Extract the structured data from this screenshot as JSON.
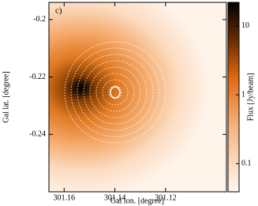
{
  "chart_data": {
    "type": "image",
    "title": "c)",
    "xlabel": "Gal lon. [degree]",
    "ylabel": "Gal lat. [degree]",
    "xlim": [
      301.166,
      301.096
    ],
    "xticks": [
      301.16,
      301.14,
      301.12
    ],
    "ylim": [
      -0.26,
      -0.194
    ],
    "yticks": [
      -0.2,
      -0.22,
      -0.24
    ],
    "colorbar": {
      "label": "Flux [Jy/beam]",
      "scale": "log",
      "lim": [
        0.039,
        22
      ],
      "ticks": [
        0.1,
        1,
        10
      ]
    }
  }
}
